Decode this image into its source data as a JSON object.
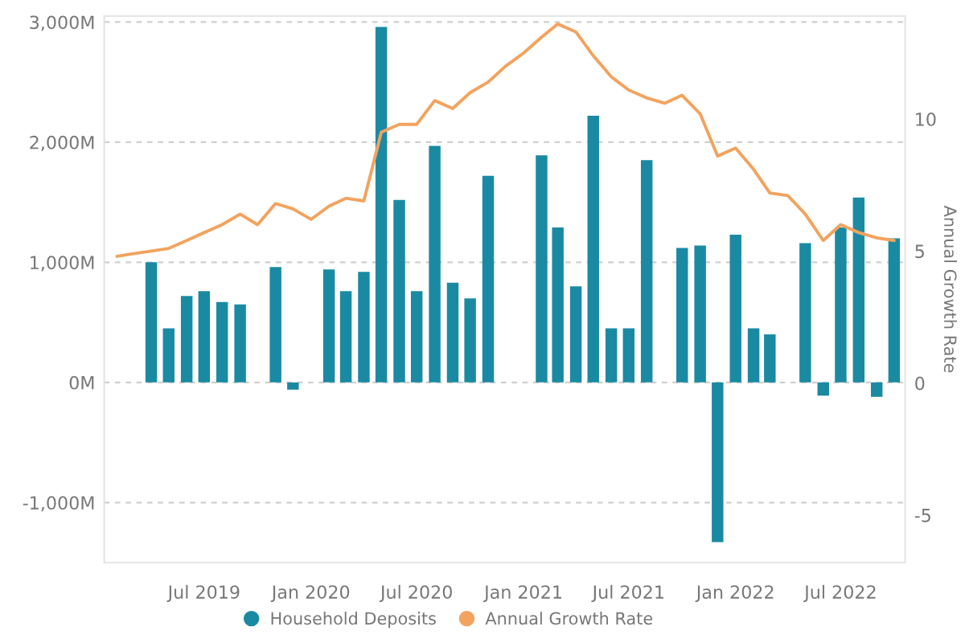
{
  "chart_data": {
    "type": "bar",
    "x": [
      "2019-02",
      "2019-03",
      "2019-04",
      "2019-05",
      "2019-06",
      "2019-07",
      "2019-08",
      "2019-09",
      "2019-10",
      "2019-11",
      "2019-12",
      "2020-01",
      "2020-02",
      "2020-03",
      "2020-04",
      "2020-05",
      "2020-06",
      "2020-07",
      "2020-08",
      "2020-09",
      "2020-10",
      "2020-11",
      "2020-12",
      "2021-01",
      "2021-02",
      "2021-03",
      "2021-04",
      "2021-05",
      "2021-06",
      "2021-07",
      "2021-08",
      "2021-09",
      "2021-10",
      "2021-11",
      "2021-12",
      "2022-01",
      "2022-02",
      "2022-03",
      "2022-04",
      "2022-05",
      "2022-06",
      "2022-07",
      "2022-08",
      "2022-09",
      "2022-10"
    ],
    "series": [
      {
        "name": "Household Deposits",
        "color": "#1a8aa3",
        "values": [
          null,
          null,
          1000,
          450,
          720,
          760,
          670,
          650,
          null,
          960,
          -60,
          null,
          940,
          760,
          920,
          2960,
          1520,
          760,
          1970,
          830,
          700,
          1720,
          null,
          null,
          1890,
          1290,
          800,
          2220,
          450,
          450,
          1850,
          null,
          1120,
          1140,
          -1330,
          1230,
          450,
          400,
          null,
          1160,
          -110,
          1290,
          1540,
          -120,
          1200
        ]
      },
      {
        "name": "Annual Growth Rate",
        "type": "line",
        "axis": "y2",
        "color": "#f2a35e",
        "values": [
          4.8,
          4.9,
          5.0,
          5.1,
          5.4,
          5.7,
          6.0,
          6.4,
          6.0,
          6.8,
          6.6,
          6.2,
          6.7,
          7.0,
          6.9,
          9.5,
          9.8,
          9.8,
          10.7,
          10.4,
          11.0,
          11.4,
          12.0,
          12.5,
          13.1,
          13.6,
          13.3,
          12.4,
          11.6,
          11.1,
          10.8,
          10.6,
          10.9,
          10.2,
          8.6,
          8.9,
          8.1,
          7.2,
          7.1,
          6.4,
          5.4,
          6.0,
          5.7,
          5.5,
          5.4
        ]
      }
    ],
    "y2label": "Annual Growth Rate",
    "xlim": [
      "2019-01-10",
      "2022-10-20"
    ],
    "xticks": [
      {
        "value": "2019-07",
        "label": "Jul 2019"
      },
      {
        "value": "2020-01",
        "label": "Jan 2020"
      },
      {
        "value": "2020-07",
        "label": "Jul 2020"
      },
      {
        "value": "2021-01",
        "label": "Jan 2021"
      },
      {
        "value": "2021-07",
        "label": "Jul 2021"
      },
      {
        "value": "2022-01",
        "label": "Jan 2022"
      },
      {
        "value": "2022-07",
        "label": "Jul 2022"
      }
    ],
    "ylim": [
      -1500,
      3050
    ],
    "yticks": [
      {
        "value": -1000,
        "label": "-1,000M"
      },
      {
        "value": 0,
        "label": "0M"
      },
      {
        "value": 1000,
        "label": "1,000M"
      },
      {
        "value": 2000,
        "label": "2,000M"
      },
      {
        "value": 3000,
        "label": "3,000M"
      }
    ],
    "y2lim": [
      -6.8,
      13.9
    ],
    "y2ticks": [
      -5,
      0,
      5,
      10
    ],
    "grid": "y",
    "legend": "bottom"
  }
}
